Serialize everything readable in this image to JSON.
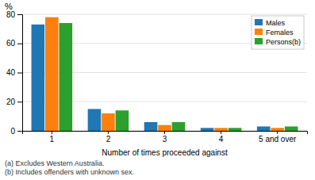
{
  "chart_data": {
    "type": "bar",
    "categories": [
      "1",
      "2",
      "3",
      "4",
      "5 and over"
    ],
    "series": [
      {
        "name": "Males",
        "values": [
          73,
          15,
          6,
          2,
          3
        ]
      },
      {
        "name": "Females",
        "values": [
          78,
          12,
          4,
          2,
          2
        ]
      },
      {
        "name": "Persons(b)",
        "values": [
          74,
          14,
          6,
          2,
          3
        ]
      }
    ],
    "xlabel": "Number of times  proceeded against",
    "ylabel": "%",
    "ylim": [
      0,
      80
    ],
    "yticks": [
      0,
      20,
      40,
      60,
      80
    ],
    "grid": true,
    "legend": "top-right",
    "annotations": [
      "(a) Excludes Western Australia.",
      "(b) Includes offenders with unknown sex."
    ]
  }
}
